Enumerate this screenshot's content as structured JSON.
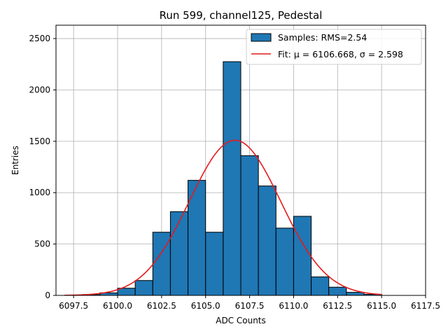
{
  "chart_data": {
    "type": "bar",
    "title": "Run 599, channel125, Pedestal",
    "xlabel": "ADC Counts",
    "ylabel": "Entries",
    "xlim": [
      6096.5,
      6117.5
    ],
    "ylim": [
      0,
      2630
    ],
    "grid": true,
    "legend_placement": "top-right",
    "x_ticks": [
      6097.5,
      6100.0,
      6102.5,
      6105.0,
      6107.5,
      6110.0,
      6112.5,
      6115.0,
      6117.5
    ],
    "x_tick_labels": [
      "6097.5",
      "6100.0",
      "6102.5",
      "6105.0",
      "6107.5",
      "6110.0",
      "6112.5",
      "6115.0",
      "6117.5"
    ],
    "y_ticks": [
      0,
      500,
      1000,
      1500,
      2000,
      2500
    ],
    "y_tick_labels": [
      "0",
      "500",
      "1000",
      "1500",
      "2000",
      "2500"
    ],
    "series": [
      {
        "name": "Samples: RMS=2.54",
        "type": "histogram",
        "color": "#1f77b4",
        "bin_edges": [
          6097.0,
          6098.0,
          6099.0,
          6100.0,
          6101.0,
          6102.0,
          6103.0,
          6104.0,
          6105.0,
          6106.0,
          6107.0,
          6108.0,
          6109.0,
          6110.0,
          6111.0,
          6112.0,
          6113.0,
          6114.0,
          6115.0
        ],
        "counts": [
          2,
          8,
          25,
          70,
          145,
          615,
          815,
          1120,
          615,
          2275,
          1360,
          1065,
          655,
          770,
          180,
          80,
          30,
          10
        ]
      },
      {
        "name": "Fit: μ = 6106.668, σ = 2.598",
        "type": "line",
        "color": "#e41a1c",
        "model": "gaussian",
        "mu": 6106.668,
        "sigma": 2.598,
        "amplitude": 1510,
        "x_range": [
          6097.0,
          6115.0
        ]
      }
    ]
  }
}
